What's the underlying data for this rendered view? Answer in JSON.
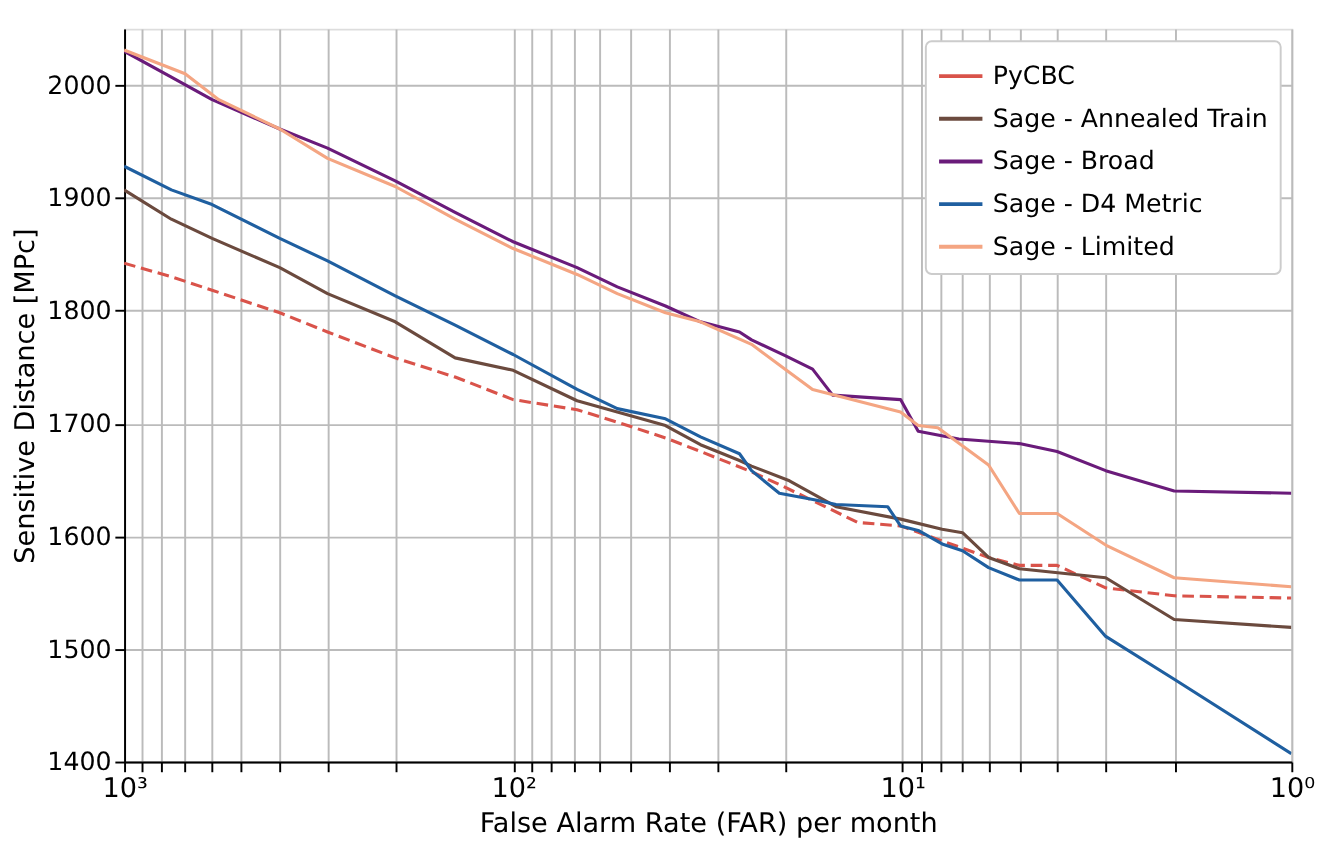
{
  "chart_data": {
    "type": "line",
    "xlabel": "False Alarm Rate (FAR) per month",
    "ylabel": "Sensitive Distance [MPc]",
    "log": "x",
    "grid": true,
    "legend": "top right",
    "xlim": [
      1000,
      1
    ],
    "ylim": [
      1400,
      2050
    ],
    "xticks": [
      {
        "value": 1000,
        "label": "10³"
      },
      {
        "value": 100,
        "label": "10²"
      },
      {
        "value": 10,
        "label": "10¹"
      },
      {
        "value": 1,
        "label": "10⁰"
      },
      {
        "value": 900,
        "label": null
      },
      {
        "value": 800,
        "label": null
      },
      {
        "value": 700,
        "label": null
      },
      {
        "value": 600,
        "label": null
      },
      {
        "value": 500,
        "label": null
      },
      {
        "value": 400,
        "label": null
      },
      {
        "value": 300,
        "label": null
      },
      {
        "value": 200,
        "label": null
      },
      {
        "value": 90,
        "label": null
      },
      {
        "value": 80,
        "label": null
      },
      {
        "value": 70,
        "label": null
      },
      {
        "value": 60,
        "label": null
      },
      {
        "value": 50,
        "label": null
      },
      {
        "value": 40,
        "label": null
      },
      {
        "value": 30,
        "label": null
      },
      {
        "value": 20,
        "label": null
      },
      {
        "value": 9,
        "label": null
      },
      {
        "value": 8,
        "label": null
      },
      {
        "value": 7,
        "label": null
      },
      {
        "value": 6,
        "label": null
      },
      {
        "value": 5,
        "label": null
      },
      {
        "value": 4,
        "label": null
      },
      {
        "value": 3,
        "label": null
      },
      {
        "value": 2,
        "label": null
      }
    ],
    "yticks": [
      1400,
      1500,
      1600,
      1700,
      1800,
      1900,
      2000
    ],
    "series": [
      {
        "name": "PyCBC",
        "color": "#d9534a",
        "line_style": "dashed",
        "x": [
          1000,
          756,
          594,
          398,
          300,
          201,
          141,
          100,
          68.5,
          54,
          40.6,
          33,
          24.4,
          20.5,
          13,
          10.1,
          8.1,
          6,
          5,
          4,
          3,
          2,
          1
        ],
        "values": [
          1842,
          1830,
          1818,
          1798,
          1781,
          1758,
          1741,
          1721,
          1712,
          1701,
          1687,
          1675,
          1657,
          1645,
          1612,
          1609,
          1597,
          1581,
          1574,
          1574,
          1554,
          1547,
          1545
        ]
      },
      {
        "name": "Sage - Annealed Train",
        "color": "#6b4a3e",
        "line_style": "solid",
        "x": [
          1000,
          756,
          594,
          398,
          300,
          201,
          141,
          100,
          68.5,
          54,
          40.6,
          33,
          26.2,
          24.4,
          19.5,
          14.8,
          10.1,
          7.9,
          7,
          6,
          5,
          3,
          2,
          1
        ],
        "values": [
          1907,
          1881,
          1864,
          1838,
          1815,
          1790,
          1758,
          1747,
          1720,
          1710,
          1698,
          1681,
          1667,
          1662,
          1649,
          1626,
          1615,
          1606,
          1603,
          1581,
          1571,
          1563,
          1526,
          1519
        ]
      },
      {
        "name": "Sage - Broad",
        "color": "#6a1b7a",
        "line_style": "solid",
        "x": [
          1000,
          756,
          594,
          398,
          300,
          201,
          141,
          100,
          68.5,
          54,
          40.6,
          33,
          26.2,
          24.4,
          20,
          17,
          15.1,
          10.1,
          9.1,
          7.16,
          5,
          4,
          3,
          2,
          1
        ],
        "values": [
          2030,
          2007,
          1987,
          1961,
          1944,
          1915,
          1887,
          1861,
          1838,
          1821,
          1804,
          1790,
          1781,
          1774,
          1760,
          1748,
          1725,
          1721,
          1693,
          1686,
          1682,
          1675,
          1658,
          1640,
          1638
        ]
      },
      {
        "name": "Sage - D4 Metric",
        "color": "#1f5fa0",
        "line_style": "solid",
        "x": [
          1000,
          756,
          594,
          398,
          300,
          201,
          141,
          100,
          68.5,
          54,
          40.6,
          33,
          26.2,
          24.4,
          20.7,
          16.7,
          14.8,
          10.9,
          10.1,
          9.1,
          7.9,
          7,
          6,
          5,
          4,
          3,
          2,
          1
        ],
        "values": [
          1928,
          1907,
          1894,
          1864,
          1844,
          1813,
          1787,
          1761,
          1730,
          1713,
          1704,
          1688,
          1673,
          1658,
          1638,
          1632,
          1628,
          1626,
          1609,
          1605,
          1593,
          1587,
          1572,
          1561,
          1561,
          1511,
          1473,
          1407
        ]
      },
      {
        "name": "Sage - Limited",
        "color": "#f4a582",
        "line_style": "solid",
        "x": [
          1000,
          697,
          571,
          398,
          300,
          201,
          141,
          100,
          68.5,
          54,
          40.6,
          33,
          24.4,
          20,
          17,
          10.1,
          9.1,
          8.1,
          6,
          5,
          4,
          3,
          2,
          1
        ],
        "values": [
          2031,
          2010,
          1987,
          1961,
          1935,
          1910,
          1881,
          1855,
          1832,
          1815,
          1798,
          1790,
          1770,
          1748,
          1730,
          1710,
          1698,
          1696,
          1663,
          1620,
          1620,
          1592,
          1563,
          1555
        ]
      }
    ]
  }
}
